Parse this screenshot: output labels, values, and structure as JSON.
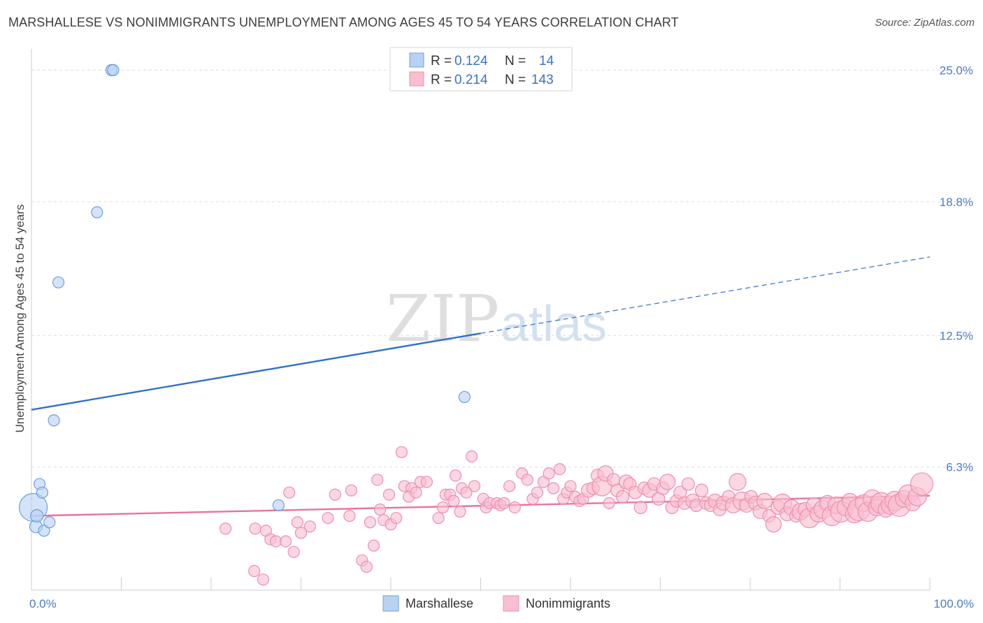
{
  "title": "MARSHALLESE VS NONIMMIGRANTS UNEMPLOYMENT AMONG AGES 45 TO 54 YEARS CORRELATION CHART",
  "source": "Source: ZipAtlas.com",
  "watermark": {
    "zip": "ZIP",
    "atlas": "atlas"
  },
  "legend": {
    "rows": [
      {
        "r_label": "R =",
        "r_value": "0.124",
        "n_label": "N =",
        "n_value": "14"
      },
      {
        "r_label": "R =",
        "r_value": "0.214",
        "n_label": "N =",
        "n_value": "143"
      }
    ]
  },
  "colors": {
    "marshallese_fill": "#b9d2f2",
    "marshallese_stroke": "#6d9ee0",
    "marshallese_line": "#2f6fcc",
    "nonimmigrants_fill": "#f8bfd0",
    "nonimmigrants_stroke": "#ec8fae",
    "nonimmigrants_line": "#e8739c",
    "tick_text": "#4a7cc5",
    "grid": "#dddddd"
  },
  "chart_data": {
    "type": "scatter",
    "title": "MARSHALLESE VS NONIMMIGRANTS UNEMPLOYMENT AMONG AGES 45 TO 54 YEARS CORRELATION CHART",
    "xlabel": "",
    "ylabel": "Unemployment Among Ages 45 to 54 years",
    "xlim": [
      0,
      100
    ],
    "ylim": [
      0.5,
      26
    ],
    "x_tick_labels": [
      "0.0%",
      "100.0%"
    ],
    "y_ticks": [
      6.3,
      12.5,
      18.8,
      25.0
    ],
    "y_tick_labels": [
      "6.3%",
      "12.5%",
      "18.8%",
      "25.0%"
    ],
    "grid": "horizontal dashed",
    "legend_position": "top-center",
    "series": [
      {
        "name": "Marshallese",
        "r": 0.124,
        "n": 14,
        "trend": {
          "x0": 0,
          "y0": 9.0,
          "x1": 50,
          "y1": 12.6,
          "dashed_to_x": 100,
          "dashed_to_y": 16.2
        },
        "points": [
          [
            0.2,
            4.4,
            20
          ],
          [
            0.5,
            3.5,
            9
          ],
          [
            0.6,
            4.0,
            9
          ],
          [
            0.9,
            5.5,
            8
          ],
          [
            1.2,
            5.1,
            8
          ],
          [
            1.4,
            3.3,
            8
          ],
          [
            2.0,
            3.7,
            8
          ],
          [
            2.5,
            8.5,
            8
          ],
          [
            3.0,
            15.0,
            8
          ],
          [
            7.3,
            18.3,
            8
          ],
          [
            8.9,
            25.0,
            8
          ],
          [
            9.1,
            25.0,
            8
          ],
          [
            27.5,
            4.5,
            8
          ],
          [
            48.2,
            9.6,
            8
          ]
        ]
      },
      {
        "name": "Nonimmigrants",
        "r": 0.214,
        "n": 143,
        "trend": {
          "x0": 0,
          "y0": 4.0,
          "x1": 100,
          "y1": 4.95
        },
        "points": [
          [
            21.6,
            3.4,
            8
          ],
          [
            24.8,
            1.4,
            8
          ],
          [
            25.8,
            1.0,
            8
          ],
          [
            24.9,
            3.4,
            8
          ],
          [
            26.1,
            3.3,
            8
          ],
          [
            26.6,
            2.9,
            8
          ],
          [
            27.2,
            2.8,
            8
          ],
          [
            28.3,
            2.8,
            8
          ],
          [
            29.2,
            2.3,
            8
          ],
          [
            29.6,
            3.7,
            8
          ],
          [
            30.0,
            3.2,
            8
          ],
          [
            31.0,
            3.5,
            8
          ],
          [
            28.7,
            5.1,
            8
          ],
          [
            33.0,
            3.9,
            8
          ],
          [
            33.8,
            5.0,
            8
          ],
          [
            35.4,
            4.0,
            8
          ],
          [
            35.6,
            5.2,
            8
          ],
          [
            36.8,
            1.9,
            8
          ],
          [
            37.3,
            1.6,
            8
          ],
          [
            37.7,
            3.7,
            8
          ],
          [
            38.1,
            2.6,
            8
          ],
          [
            38.5,
            5.7,
            8
          ],
          [
            38.8,
            4.3,
            8
          ],
          [
            39.2,
            3.8,
            8
          ],
          [
            40.0,
            3.6,
            8
          ],
          [
            39.8,
            5.0,
            8
          ],
          [
            40.6,
            3.9,
            8
          ],
          [
            41.2,
            7.0,
            8
          ],
          [
            41.5,
            5.4,
            8
          ],
          [
            42.3,
            5.3,
            8
          ],
          [
            42.0,
            4.9,
            8
          ],
          [
            42.8,
            5.1,
            8
          ],
          [
            43.3,
            5.6,
            8
          ],
          [
            44.0,
            5.6,
            8
          ],
          [
            45.3,
            3.9,
            8
          ],
          [
            45.8,
            4.4,
            8
          ],
          [
            46.1,
            5.0,
            8
          ],
          [
            46.6,
            5.0,
            8
          ],
          [
            47.0,
            4.7,
            8
          ],
          [
            47.7,
            4.2,
            8
          ],
          [
            47.2,
            5.9,
            8
          ],
          [
            47.9,
            5.3,
            8
          ],
          [
            48.4,
            5.1,
            8
          ],
          [
            49.0,
            6.8,
            8
          ],
          [
            49.3,
            5.4,
            8
          ],
          [
            50.3,
            4.8,
            8
          ],
          [
            50.6,
            4.4,
            8
          ],
          [
            51.0,
            4.6,
            8
          ],
          [
            51.8,
            4.6,
            8
          ],
          [
            52.2,
            4.5,
            8
          ],
          [
            52.6,
            4.6,
            8
          ],
          [
            53.2,
            5.4,
            8
          ],
          [
            53.8,
            4.4,
            8
          ],
          [
            54.6,
            6.0,
            8
          ],
          [
            55.2,
            5.7,
            8
          ],
          [
            55.8,
            4.8,
            8
          ],
          [
            56.3,
            5.1,
            8
          ],
          [
            57.0,
            5.6,
            8
          ],
          [
            57.6,
            6.0,
            8
          ],
          [
            58.1,
            5.3,
            8
          ],
          [
            58.8,
            6.2,
            8
          ],
          [
            59.2,
            4.8,
            8
          ],
          [
            59.6,
            5.1,
            8
          ],
          [
            60.0,
            5.4,
            8
          ],
          [
            60.5,
            4.9,
            8
          ],
          [
            61.0,
            4.7,
            8
          ],
          [
            61.4,
            4.8,
            8
          ],
          [
            62.0,
            5.2,
            10
          ],
          [
            62.5,
            5.3,
            9
          ],
          [
            63.0,
            5.9,
            9
          ],
          [
            63.5,
            5.4,
            14
          ],
          [
            63.9,
            6.0,
            11
          ],
          [
            64.3,
            4.6,
            8
          ],
          [
            64.8,
            5.7,
            9
          ],
          [
            65.2,
            5.2,
            9
          ],
          [
            65.8,
            4.9,
            9
          ],
          [
            66.2,
            5.6,
            10
          ],
          [
            66.6,
            5.5,
            9
          ],
          [
            67.2,
            5.1,
            9
          ],
          [
            67.8,
            4.4,
            9
          ],
          [
            68.2,
            5.3,
            9
          ],
          [
            68.8,
            5.2,
            10
          ],
          [
            69.3,
            5.5,
            9
          ],
          [
            69.8,
            4.8,
            9
          ],
          [
            70.3,
            5.3,
            9
          ],
          [
            70.8,
            5.6,
            11
          ],
          [
            71.3,
            4.4,
            9
          ],
          [
            71.8,
            4.7,
            9
          ],
          [
            72.2,
            5.1,
            9
          ],
          [
            72.7,
            4.6,
            9
          ],
          [
            73.1,
            5.5,
            9
          ],
          [
            73.6,
            4.7,
            10
          ],
          [
            74.0,
            4.5,
            9
          ],
          [
            74.6,
            5.2,
            9
          ],
          [
            75.1,
            4.6,
            9
          ],
          [
            75.6,
            4.5,
            9
          ],
          [
            76.1,
            4.7,
            10
          ],
          [
            76.6,
            4.3,
            9
          ],
          [
            77.0,
            4.6,
            10
          ],
          [
            77.6,
            4.9,
            9
          ],
          [
            78.1,
            4.5,
            11
          ],
          [
            78.6,
            5.6,
            12
          ],
          [
            79.1,
            4.7,
            13
          ],
          [
            79.6,
            4.5,
            10
          ],
          [
            80.1,
            4.9,
            9
          ],
          [
            80.6,
            4.6,
            10
          ],
          [
            81.1,
            4.2,
            10
          ],
          [
            81.6,
            4.7,
            11
          ],
          [
            82.1,
            4.0,
            9
          ],
          [
            82.6,
            3.6,
            11
          ],
          [
            83.1,
            4.4,
            10
          ],
          [
            83.6,
            4.6,
            13
          ],
          [
            84.1,
            4.1,
            10
          ],
          [
            84.6,
            4.4,
            11
          ],
          [
            85.1,
            4.0,
            9
          ],
          [
            85.6,
            4.2,
            12
          ],
          [
            86.1,
            4.3,
            10
          ],
          [
            86.6,
            3.9,
            14
          ],
          [
            87.1,
            4.5,
            11
          ],
          [
            87.6,
            4.1,
            12
          ],
          [
            88.1,
            4.3,
            13
          ],
          [
            88.6,
            4.6,
            11
          ],
          [
            89.1,
            4.0,
            14
          ],
          [
            89.6,
            4.5,
            12
          ],
          [
            90.1,
            4.2,
            15
          ],
          [
            90.6,
            4.4,
            12
          ],
          [
            91.1,
            4.7,
            11
          ],
          [
            91.6,
            4.1,
            13
          ],
          [
            92.1,
            4.3,
            16
          ],
          [
            92.6,
            4.6,
            12
          ],
          [
            93.1,
            4.2,
            14
          ],
          [
            93.6,
            4.8,
            13
          ],
          [
            94.1,
            4.4,
            12
          ],
          [
            94.6,
            4.6,
            15
          ],
          [
            95.1,
            4.3,
            11
          ],
          [
            95.6,
            4.5,
            13
          ],
          [
            96.1,
            4.7,
            14
          ],
          [
            96.6,
            4.5,
            16
          ],
          [
            97.1,
            4.8,
            12
          ],
          [
            97.6,
            5.0,
            14
          ],
          [
            98.1,
            4.6,
            11
          ],
          [
            98.6,
            4.9,
            13
          ],
          [
            99.1,
            5.5,
            16
          ]
        ]
      }
    ]
  },
  "bottom_legend": [
    {
      "name": "Marshallese"
    },
    {
      "name": "Nonimmigrants"
    }
  ]
}
